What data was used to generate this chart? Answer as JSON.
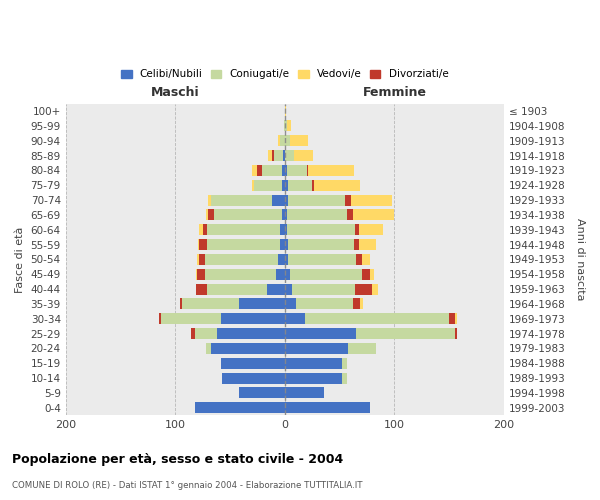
{
  "age_groups": [
    "0-4",
    "5-9",
    "10-14",
    "15-19",
    "20-24",
    "25-29",
    "30-34",
    "35-39",
    "40-44",
    "45-49",
    "50-54",
    "55-59",
    "60-64",
    "65-69",
    "70-74",
    "75-79",
    "80-84",
    "85-89",
    "90-94",
    "95-99",
    "100+"
  ],
  "birth_years": [
    "1999-2003",
    "1994-1998",
    "1989-1993",
    "1984-1988",
    "1979-1983",
    "1974-1978",
    "1969-1973",
    "1964-1968",
    "1959-1963",
    "1954-1958",
    "1949-1953",
    "1944-1948",
    "1939-1943",
    "1934-1938",
    "1929-1933",
    "1924-1928",
    "1919-1923",
    "1914-1918",
    "1909-1913",
    "1904-1908",
    "≤ 1903"
  ],
  "maschi": {
    "celibi": [
      82,
      42,
      57,
      58,
      67,
      62,
      58,
      42,
      16,
      8,
      6,
      4,
      4,
      3,
      12,
      3,
      3,
      2,
      0,
      0,
      0
    ],
    "coniugati": [
      0,
      0,
      0,
      0,
      5,
      20,
      55,
      52,
      55,
      65,
      67,
      67,
      67,
      62,
      55,
      25,
      18,
      8,
      4,
      1,
      0
    ],
    "vedovi": [
      0,
      0,
      0,
      0,
      0,
      0,
      0,
      0,
      0,
      1,
      2,
      1,
      3,
      2,
      3,
      2,
      5,
      3,
      2,
      0,
      0
    ],
    "divorziati": [
      0,
      0,
      0,
      0,
      0,
      4,
      2,
      2,
      10,
      7,
      5,
      7,
      4,
      5,
      0,
      0,
      4,
      2,
      0,
      0,
      0
    ]
  },
  "femmine": {
    "nubili": [
      78,
      36,
      52,
      52,
      58,
      65,
      18,
      10,
      7,
      5,
      3,
      3,
      2,
      2,
      3,
      3,
      2,
      0,
      0,
      0,
      0
    ],
    "coniugate": [
      0,
      0,
      5,
      5,
      25,
      90,
      132,
      52,
      57,
      65,
      62,
      60,
      62,
      55,
      52,
      22,
      18,
      8,
      5,
      2,
      0
    ],
    "vedove": [
      0,
      0,
      0,
      0,
      0,
      0,
      2,
      2,
      5,
      3,
      8,
      15,
      22,
      38,
      38,
      42,
      42,
      18,
      16,
      4,
      1
    ],
    "divorziate": [
      0,
      0,
      0,
      0,
      0,
      2,
      5,
      7,
      16,
      8,
      5,
      5,
      4,
      5,
      5,
      2,
      1,
      0,
      0,
      0,
      0
    ]
  },
  "colors": {
    "celibi_nubili": "#4472c4",
    "coniugati": "#c5d9a0",
    "vedovi": "#ffd966",
    "divorziati": "#c0392b"
  },
  "xlim": [
    -200,
    200
  ],
  "xticks": [
    -200,
    -100,
    0,
    100,
    200
  ],
  "xticklabels": [
    "200",
    "100",
    "0",
    "100",
    "200"
  ],
  "title": "Popolazione per età, sesso e stato civile - 2004",
  "subtitle": "COMUNE DI ROLO (RE) - Dati ISTAT 1° gennaio 2004 - Elaborazione TUTTITALIA.IT",
  "ylabel": "Fasce di età",
  "ylabel_right": "Anni di nascita",
  "maschi_label": "Maschi",
  "femmine_label": "Femmine",
  "legend_labels": [
    "Celibi/Nubili",
    "Coniugati/e",
    "Vedovi/e",
    "Divorziati/e"
  ],
  "bg_color": "#ebebeb",
  "bar_height": 0.75
}
